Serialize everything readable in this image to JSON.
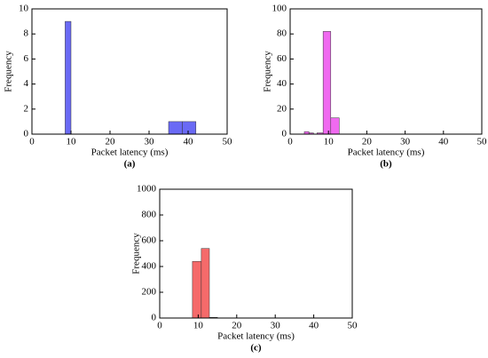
{
  "chart_data": [
    {
      "type": "histogram",
      "caption": "(a)",
      "x_label": "Packet latency (ms)",
      "y_label": "Frequency",
      "color": "#6a6af5",
      "bins": [
        8.5,
        10,
        35,
        38.5,
        42
      ],
      "counts": [
        9,
        0,
        1,
        1
      ],
      "xlim": [
        0,
        50
      ],
      "xticks": [
        0,
        10,
        20,
        30,
        40,
        50
      ],
      "ylim": [
        0,
        10
      ],
      "yticks": [
        0,
        2,
        4,
        6,
        8,
        10
      ]
    },
    {
      "type": "histogram",
      "caption": "(b)",
      "x_label": "Packet latency (ms)",
      "y_label": "Frequency",
      "color": "#f06af0",
      "bins": [
        3.7,
        4.9,
        6.1,
        7.0,
        8.6,
        10.6,
        12.8
      ],
      "counts": [
        2,
        1,
        0,
        1,
        82,
        13
      ],
      "xlim": [
        0,
        50
      ],
      "xticks": [
        0,
        10,
        20,
        30,
        40,
        50
      ],
      "ylim": [
        0,
        100
      ],
      "yticks": [
        0,
        20,
        40,
        60,
        80,
        100
      ]
    },
    {
      "type": "histogram",
      "caption": "(c)",
      "x_label": "Packet latency (ms)",
      "y_label": "Frequency",
      "color": "#f56a6a",
      "bins": [
        8.5,
        10.8,
        12.9,
        15
      ],
      "counts": [
        440,
        540,
        5
      ],
      "xlim": [
        0,
        50
      ],
      "xticks": [
        0,
        10,
        20,
        30,
        40,
        50
      ],
      "ylim": [
        0,
        1000
      ],
      "yticks": [
        0,
        200,
        400,
        600,
        800,
        1000
      ]
    }
  ]
}
